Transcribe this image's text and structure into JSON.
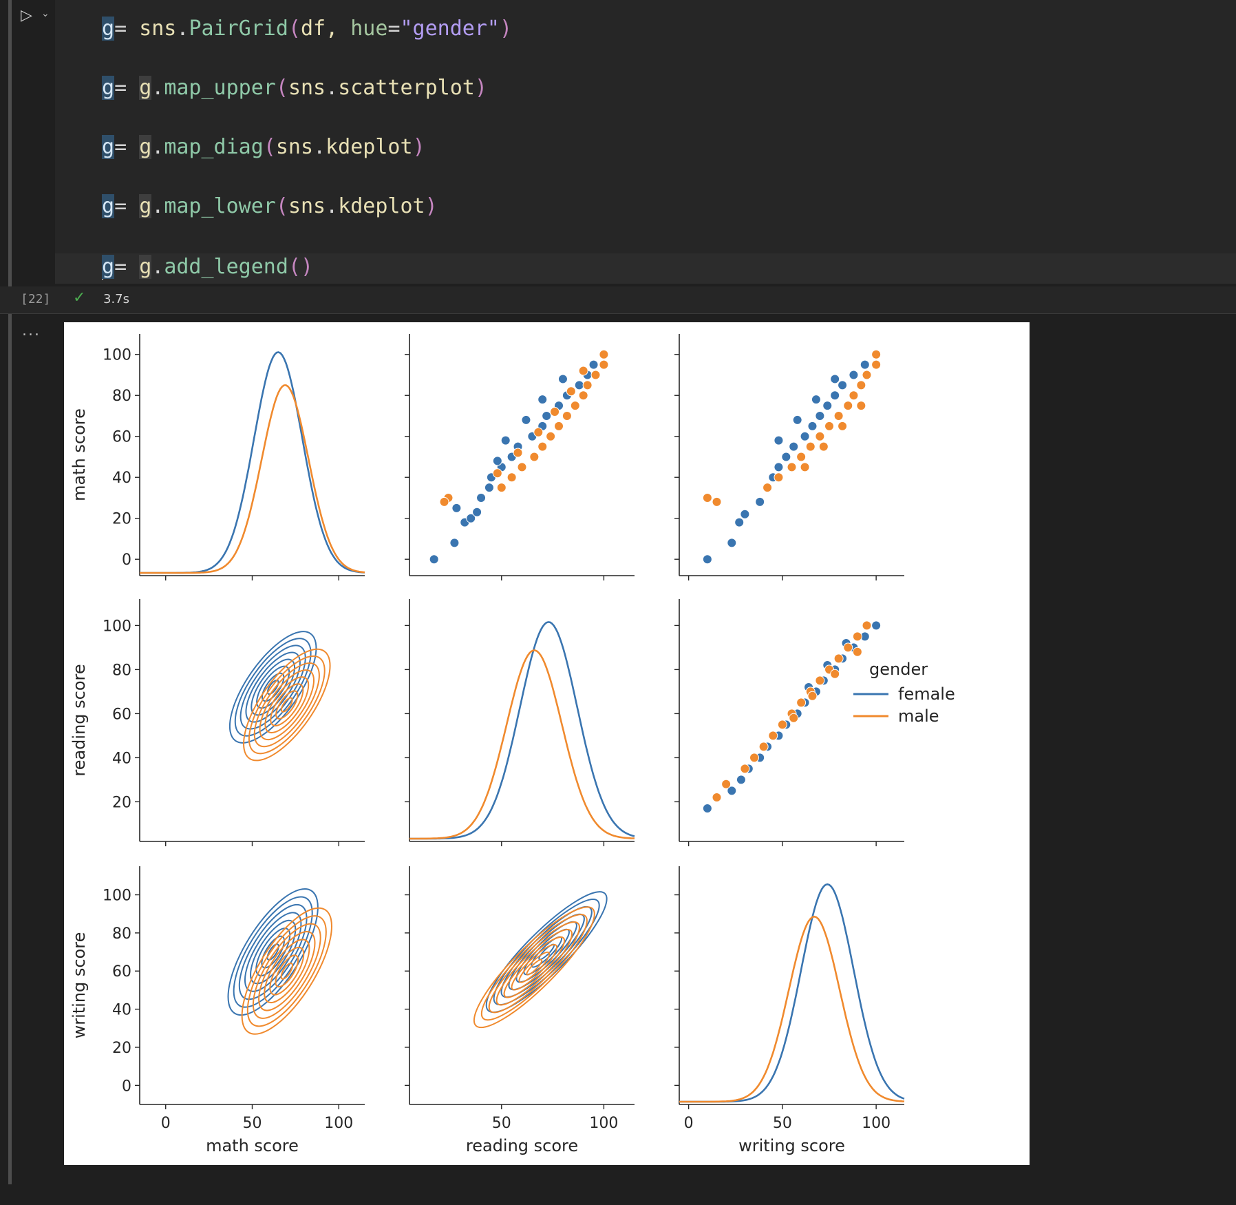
{
  "notebook": {
    "execution_count": "[22]",
    "status": "success",
    "exec_time": "3.7s",
    "output_prompt": "...",
    "code_lines": [
      [
        {
          "t": "g",
          "c": "hl"
        },
        {
          "t": "= ",
          "c": "op"
        },
        {
          "t": "sns",
          "c": "mod"
        },
        {
          "t": ".",
          "c": "op"
        },
        {
          "t": "PairGrid",
          "c": "fn"
        },
        {
          "t": "(",
          "c": "paren"
        },
        {
          "t": "df, ",
          "c": "mod"
        },
        {
          "t": "hue",
          "c": "kw"
        },
        {
          "t": "=",
          "c": "op"
        },
        {
          "t": "\"gender\"",
          "c": "str"
        },
        {
          "t": ")",
          "c": "paren"
        }
      ],
      [
        {
          "t": "g",
          "c": "hl"
        },
        {
          "t": "= ",
          "c": "op"
        },
        {
          "t": "g",
          "c": "hl2"
        },
        {
          "t": ".",
          "c": "op"
        },
        {
          "t": "map_upper",
          "c": "fn"
        },
        {
          "t": "(",
          "c": "paren"
        },
        {
          "t": "sns",
          "c": "mod"
        },
        {
          "t": ".",
          "c": "op"
        },
        {
          "t": "scatterplot",
          "c": "mod"
        },
        {
          "t": ")",
          "c": "paren"
        }
      ],
      [
        {
          "t": "g",
          "c": "hl"
        },
        {
          "t": "= ",
          "c": "op"
        },
        {
          "t": "g",
          "c": "hl2"
        },
        {
          "t": ".",
          "c": "op"
        },
        {
          "t": "map_diag",
          "c": "fn"
        },
        {
          "t": "(",
          "c": "paren"
        },
        {
          "t": "sns",
          "c": "mod"
        },
        {
          "t": ".",
          "c": "op"
        },
        {
          "t": "kdeplot",
          "c": "mod"
        },
        {
          "t": ")",
          "c": "paren"
        }
      ],
      [
        {
          "t": "g",
          "c": "hl"
        },
        {
          "t": "= ",
          "c": "op"
        },
        {
          "t": "g",
          "c": "hl2"
        },
        {
          "t": ".",
          "c": "op"
        },
        {
          "t": "map_lower",
          "c": "fn"
        },
        {
          "t": "(",
          "c": "paren"
        },
        {
          "t": "sns",
          "c": "mod"
        },
        {
          "t": ".",
          "c": "op"
        },
        {
          "t": "kdeplot",
          "c": "mod"
        },
        {
          "t": ")",
          "c": "paren"
        }
      ],
      [
        {
          "t": "g",
          "c": "cursor"
        },
        {
          "t": "= ",
          "c": "op"
        },
        {
          "t": "g",
          "c": "hl2"
        },
        {
          "t": ".",
          "c": "op"
        },
        {
          "t": "add_legend",
          "c": "fn"
        },
        {
          "t": "(",
          "c": "paren"
        },
        {
          "t": ")",
          "c": "paren"
        }
      ]
    ]
  },
  "chart_data": {
    "type": "pairgrid",
    "variables": [
      "math score",
      "reading score",
      "writing score"
    ],
    "upper": "scatter",
    "diag": "kde",
    "lower": "kde-contour",
    "hue": "gender",
    "legend": {
      "title": "gender",
      "entries": [
        "female",
        "male"
      ],
      "placement": "right"
    },
    "colors": {
      "female": "#3a75b0",
      "male": "#f08a2e"
    },
    "axes": {
      "math score": {
        "range": [
          -15,
          115
        ],
        "ticks": [
          0,
          50,
          100
        ],
        "diag_y_ticks": [
          0,
          20,
          40,
          60,
          80,
          100
        ]
      },
      "reading score": {
        "range": [
          5,
          115
        ],
        "ticks": [
          50,
          100
        ],
        "y_ticks": [
          20,
          40,
          60,
          80,
          100
        ]
      },
      "writing score": {
        "range": [
          -5,
          115
        ],
        "ticks": [
          0,
          50,
          100
        ],
        "y_ticks": [
          0,
          20,
          40,
          60,
          80,
          100
        ]
      }
    },
    "diag_kde_peaks": {
      "math score": {
        "female": 65,
        "male": 69
      },
      "reading score": {
        "female": 73,
        "male": 66
      },
      "writing score": {
        "female": 74,
        "male": 67
      }
    },
    "scatter_samples": {
      "math_vs_reading": {
        "female": [
          [
            0,
            17
          ],
          [
            8,
            27
          ],
          [
            18,
            32
          ],
          [
            20,
            35
          ],
          [
            23,
            38
          ],
          [
            25,
            28
          ],
          [
            30,
            40
          ],
          [
            35,
            44
          ],
          [
            40,
            45
          ],
          [
            45,
            50
          ],
          [
            50,
            55
          ],
          [
            55,
            58
          ],
          [
            60,
            65
          ],
          [
            65,
            70
          ],
          [
            70,
            72
          ],
          [
            75,
            78
          ],
          [
            80,
            82
          ],
          [
            85,
            88
          ],
          [
            90,
            92
          ],
          [
            95,
            95
          ],
          [
            100,
            100
          ],
          [
            88,
            80
          ],
          [
            78,
            70
          ],
          [
            68,
            62
          ],
          [
            58,
            52
          ],
          [
            48,
            48
          ]
        ],
        "male": [
          [
            30,
            24
          ],
          [
            28,
            22
          ],
          [
            35,
            50
          ],
          [
            40,
            55
          ],
          [
            45,
            60
          ],
          [
            50,
            66
          ],
          [
            55,
            70
          ],
          [
            60,
            74
          ],
          [
            65,
            78
          ],
          [
            70,
            82
          ],
          [
            75,
            86
          ],
          [
            80,
            90
          ],
          [
            85,
            92
          ],
          [
            90,
            96
          ],
          [
            95,
            100
          ],
          [
            100,
            100
          ],
          [
            42,
            48
          ],
          [
            52,
            58
          ],
          [
            62,
            68
          ],
          [
            72,
            76
          ],
          [
            82,
            84
          ],
          [
            92,
            90
          ]
        ]
      },
      "math_vs_writing": {
        "female": [
          [
            0,
            10
          ],
          [
            8,
            23
          ],
          [
            18,
            27
          ],
          [
            22,
            30
          ],
          [
            28,
            38
          ],
          [
            35,
            42
          ],
          [
            40,
            45
          ],
          [
            45,
            48
          ],
          [
            50,
            52
          ],
          [
            55,
            56
          ],
          [
            60,
            62
          ],
          [
            65,
            66
          ],
          [
            70,
            70
          ],
          [
            75,
            74
          ],
          [
            80,
            78
          ],
          [
            85,
            82
          ],
          [
            90,
            88
          ],
          [
            95,
            94
          ],
          [
            100,
            100
          ],
          [
            88,
            78
          ],
          [
            78,
            68
          ],
          [
            68,
            58
          ],
          [
            58,
            48
          ]
        ],
        "male": [
          [
            30,
            10
          ],
          [
            28,
            15
          ],
          [
            35,
            42
          ],
          [
            40,
            48
          ],
          [
            45,
            55
          ],
          [
            50,
            60
          ],
          [
            55,
            65
          ],
          [
            60,
            70
          ],
          [
            65,
            75
          ],
          [
            70,
            80
          ],
          [
            75,
            85
          ],
          [
            80,
            88
          ],
          [
            85,
            92
          ],
          [
            90,
            95
          ],
          [
            95,
            100
          ],
          [
            100,
            100
          ],
          [
            45,
            62
          ],
          [
            55,
            72
          ],
          [
            65,
            82
          ],
          [
            75,
            92
          ]
        ]
      },
      "reading_vs_writing": {
        "female": [
          [
            17,
            10
          ],
          [
            25,
            23
          ],
          [
            30,
            28
          ],
          [
            35,
            32
          ],
          [
            40,
            38
          ],
          [
            45,
            42
          ],
          [
            50,
            48
          ],
          [
            55,
            52
          ],
          [
            60,
            58
          ],
          [
            65,
            62
          ],
          [
            70,
            68
          ],
          [
            75,
            72
          ],
          [
            80,
            78
          ],
          [
            85,
            82
          ],
          [
            90,
            88
          ],
          [
            95,
            94
          ],
          [
            100,
            100
          ],
          [
            72,
            64
          ],
          [
            82,
            74
          ],
          [
            92,
            84
          ]
        ],
        "male": [
          [
            22,
            15
          ],
          [
            28,
            20
          ],
          [
            35,
            30
          ],
          [
            40,
            35
          ],
          [
            45,
            40
          ],
          [
            50,
            45
          ],
          [
            55,
            50
          ],
          [
            60,
            55
          ],
          [
            65,
            60
          ],
          [
            70,
            65
          ],
          [
            75,
            70
          ],
          [
            80,
            75
          ],
          [
            85,
            80
          ],
          [
            90,
            85
          ],
          [
            95,
            90
          ],
          [
            100,
            95
          ],
          [
            58,
            56
          ],
          [
            68,
            66
          ],
          [
            78,
            78
          ],
          [
            88,
            90
          ]
        ]
      }
    }
  }
}
